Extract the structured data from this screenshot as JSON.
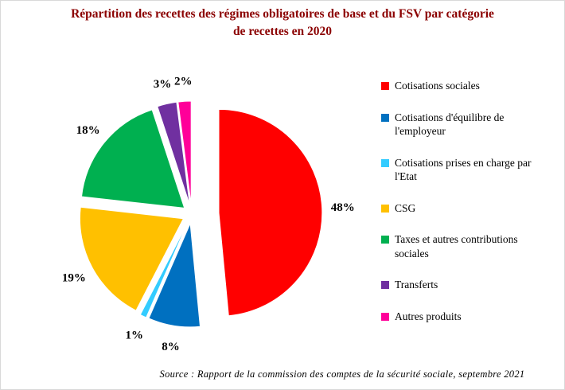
{
  "header": {
    "line1": "Répartition des recettes des régimes obligatoires de base et du FSV par catégorie",
    "line2": "de recettes en 2020",
    "title_color": "#8B0000"
  },
  "source": "Source : Rapport  de la commission  des comptes  de la sécurité  sociale,  septembre  2021",
  "chart_data": {
    "type": "pie",
    "title": "Répartition des recettes des régimes obligatoires de base et du FSV par catégorie de recettes en 2020",
    "categories": [
      "Cotisations sociales",
      "Cotisations d'équilibre de l'employeur",
      "Cotisations prises en charge par l'Etat",
      "CSG",
      "Taxes et autres contributions sociales",
      "Transferts",
      "Autres produits"
    ],
    "values": [
      48,
      8,
      1,
      19,
      18,
      3,
      2
    ],
    "labels": [
      "48%",
      "8%",
      "1%",
      "19%",
      "18%",
      "3%",
      "2%"
    ],
    "colors": [
      "#FF0000",
      "#0070C0",
      "#33CCFF",
      "#FFC000",
      "#00B050",
      "#7030A0",
      "#FF0099"
    ],
    "legend_position": "right",
    "start_angle_deg": 0,
    "direction": "clockwise",
    "exploded": true
  }
}
